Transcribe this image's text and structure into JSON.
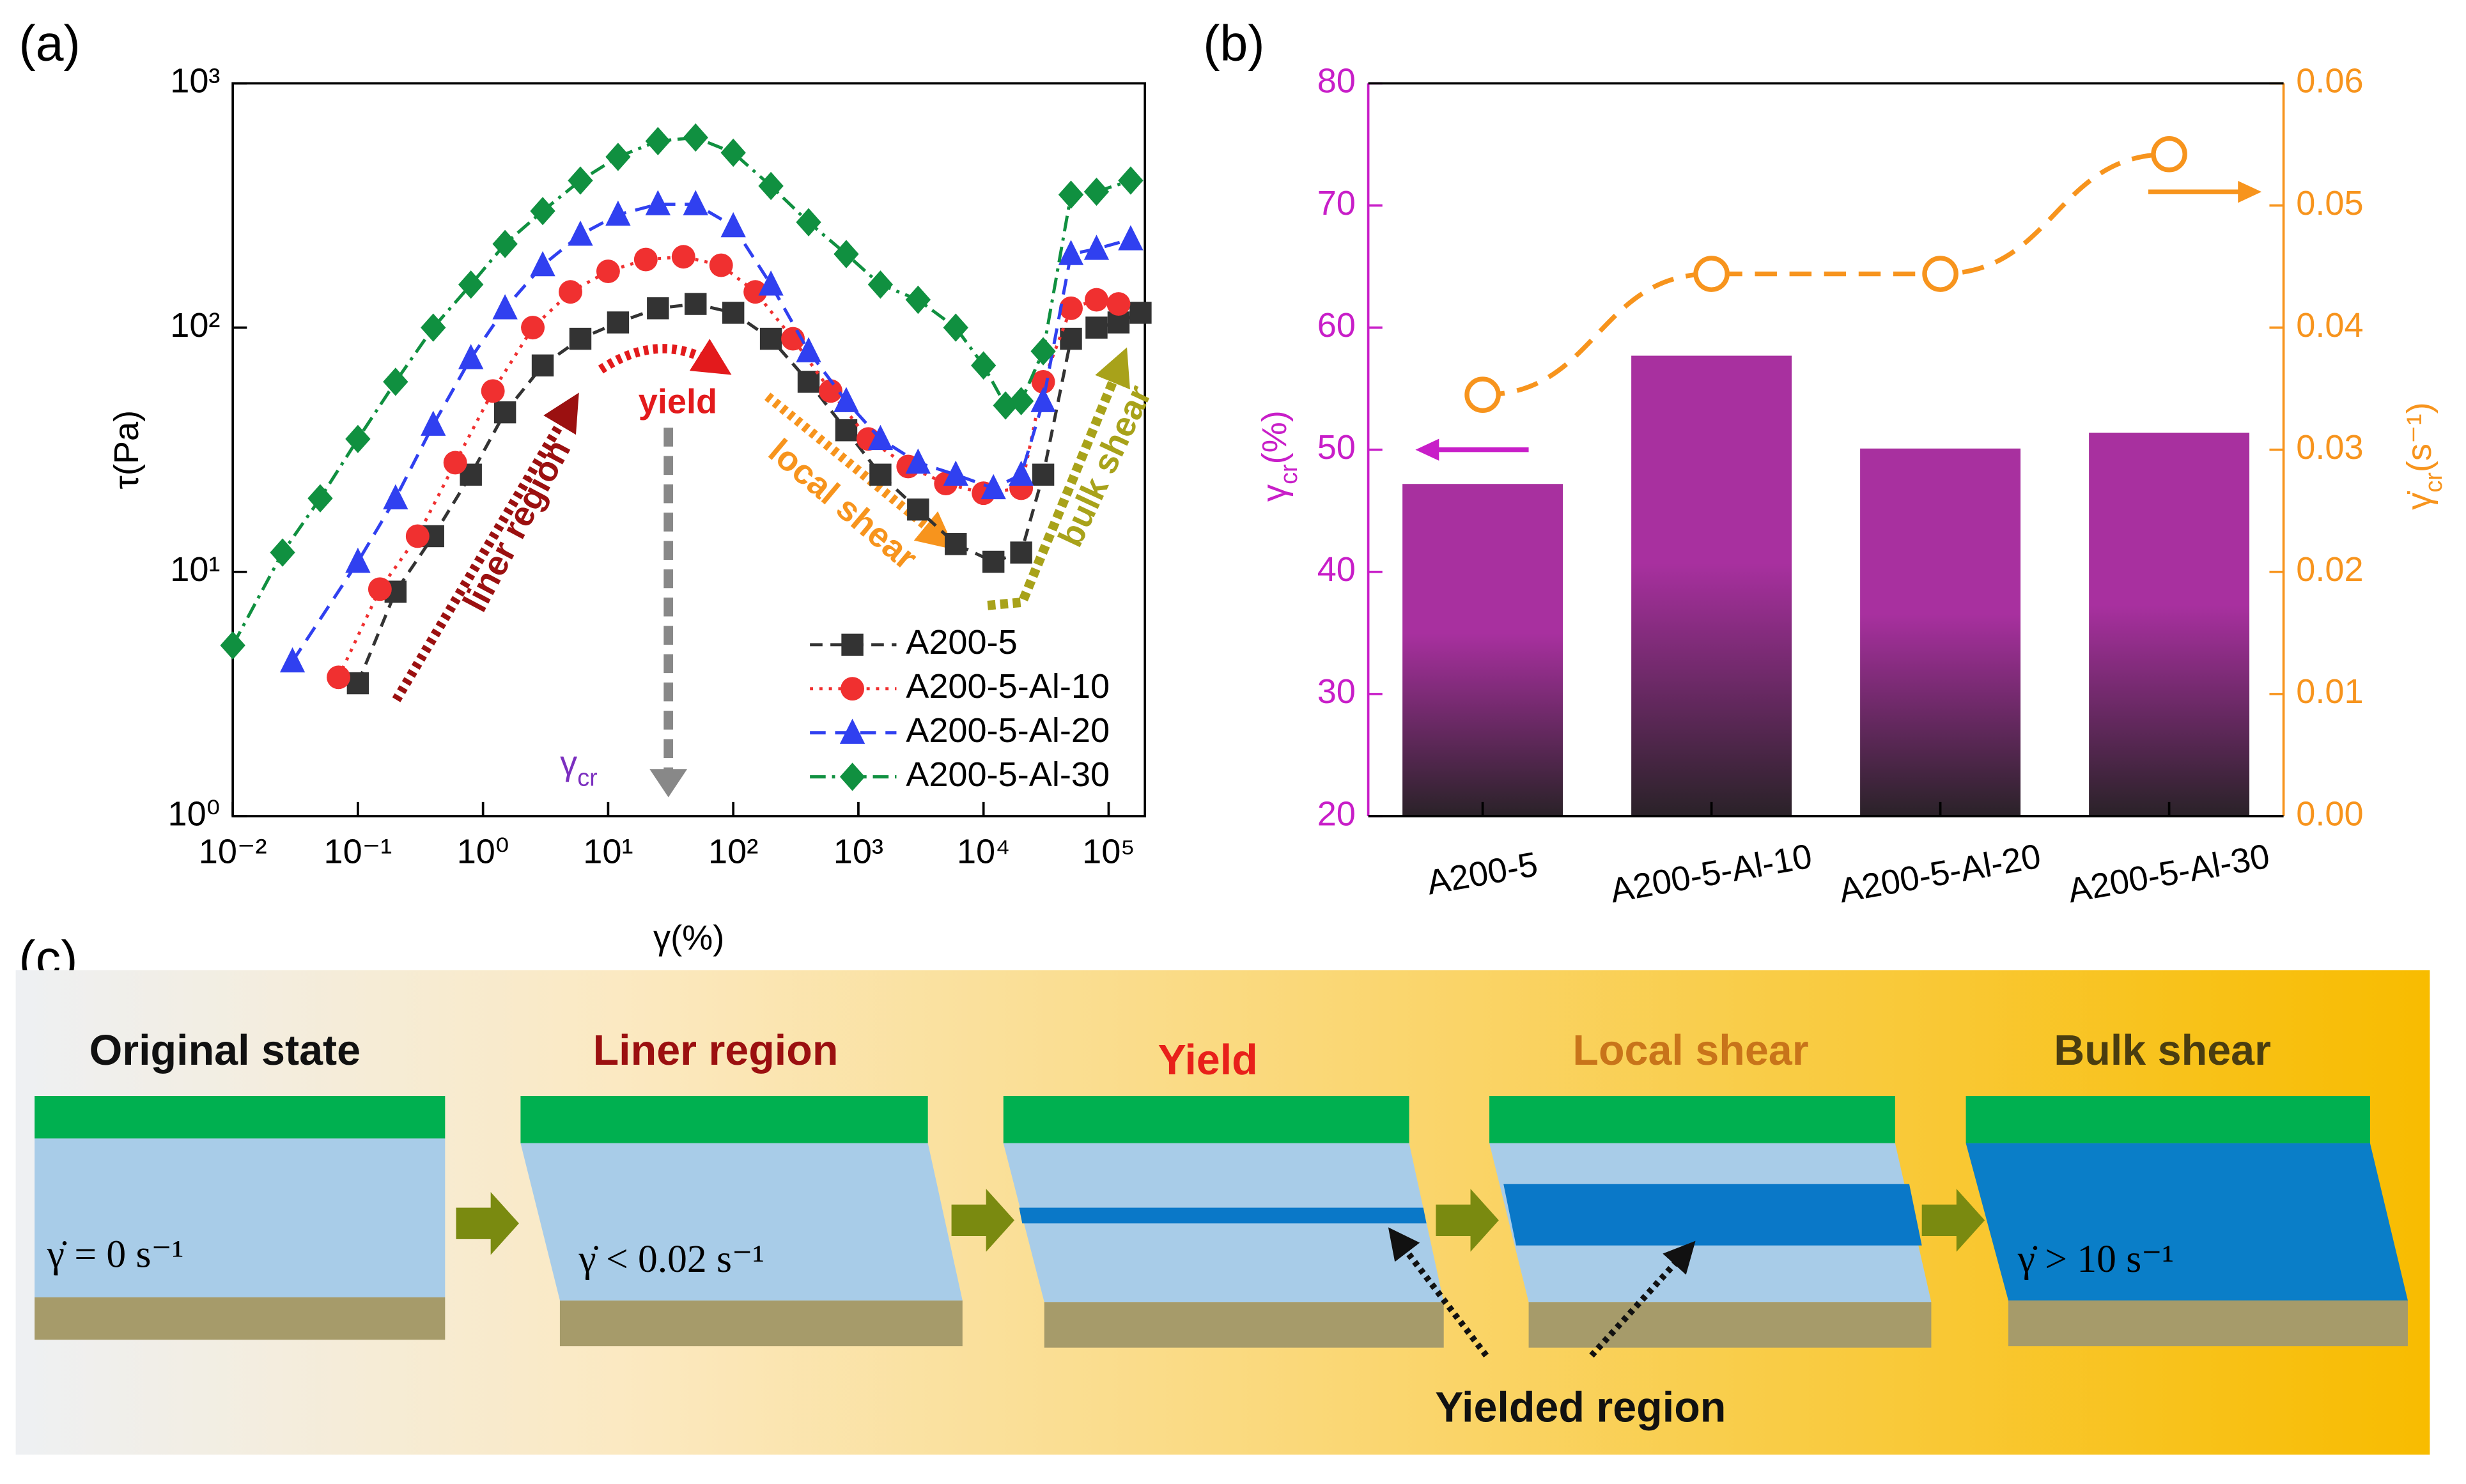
{
  "chart_data": [
    {
      "type": "line",
      "panel": "(a)",
      "xscale": "log",
      "yscale": "log",
      "xlabel": "γ(%)",
      "ylabel": "τ(Pa)",
      "xlim": [
        0.01,
        195000
      ],
      "ylim": [
        1,
        1000
      ],
      "xticks": [
        {
          "value": 0.01,
          "label": "10⁻²"
        },
        {
          "value": 0.1,
          "label": "10⁻¹"
        },
        {
          "value": 1,
          "label": "10⁰"
        },
        {
          "value": 10,
          "label": "10¹"
        },
        {
          "value": 100,
          "label": "10²"
        },
        {
          "value": 1000,
          "label": "10³"
        },
        {
          "value": 10000,
          "label": "10⁴"
        },
        {
          "value": 100000,
          "label": "10⁵"
        }
      ],
      "yticks": [
        {
          "value": 1,
          "label": "10⁰"
        },
        {
          "value": 10,
          "label": "10¹"
        },
        {
          "value": 100,
          "label": "10²"
        },
        {
          "value": 1000,
          "label": "10³"
        }
      ],
      "series": [
        {
          "name": "A200-5",
          "color": "#333333",
          "marker": "square",
          "dash": "dash",
          "x": [
            0.1,
            0.2,
            0.4,
            0.8,
            1.5,
            3,
            6,
            12,
            25,
            50,
            100,
            200,
            400,
            800,
            1500,
            3000,
            6000,
            12000,
            20000,
            30000,
            50000,
            80000,
            120000,
            180000
          ],
          "values": [
            3.5,
            8.3,
            14,
            25,
            45,
            70,
            90,
            105,
            120,
            125,
            115,
            90,
            60,
            38,
            25,
            18,
            13,
            11,
            12,
            25,
            90,
            100,
            105,
            115
          ]
        },
        {
          "name": "A200-5-Al-10",
          "color": "#f03030",
          "marker": "circle",
          "dash": "dot",
          "x": [
            0.07,
            0.15,
            0.3,
            0.6,
            1.2,
            2.5,
            5,
            10,
            20,
            40,
            80,
            150,
            300,
            600,
            1200,
            2500,
            5000,
            10000,
            20000,
            30000,
            50000,
            80000,
            120000
          ],
          "values": [
            3.7,
            8.5,
            14,
            28,
            55,
            100,
            140,
            170,
            190,
            195,
            180,
            140,
            90,
            55,
            35,
            27,
            23,
            21,
            22,
            60,
            120,
            130,
            125
          ]
        },
        {
          "name": "A200-5-Al-20",
          "color": "#3040f0",
          "marker": "triangle",
          "dash": "dashed",
          "x": [
            0.03,
            0.1,
            0.2,
            0.4,
            0.8,
            1.5,
            3,
            6,
            12,
            25,
            50,
            100,
            200,
            400,
            800,
            1500,
            3000,
            6000,
            12000,
            20000,
            30000,
            50000,
            80000,
            150000
          ],
          "values": [
            4.3,
            11,
            20,
            40,
            75,
            120,
            180,
            240,
            290,
            320,
            320,
            260,
            150,
            80,
            50,
            35,
            28,
            25,
            22,
            25,
            50,
            200,
            210,
            230
          ]
        },
        {
          "name": "A200-5-Al-30",
          "color": "#109040",
          "marker": "diamond",
          "dash": "dashdot",
          "x": [
            0.01,
            0.025,
            0.05,
            0.1,
            0.2,
            0.4,
            0.8,
            1.5,
            3,
            6,
            12,
            25,
            50,
            100,
            200,
            400,
            800,
            1500,
            3000,
            6000,
            10000,
            15000,
            20000,
            30000,
            50000,
            80000,
            150000
          ],
          "values": [
            5,
            12,
            20,
            35,
            60,
            100,
            150,
            220,
            300,
            400,
            500,
            580,
            600,
            520,
            380,
            270,
            200,
            150,
            130,
            100,
            70,
            48,
            50,
            80,
            350,
            360,
            400
          ]
        }
      ],
      "annotations": [
        {
          "text": "yield",
          "color": "#e31a1c"
        },
        {
          "text": "liner region",
          "color": "#9b1010"
        },
        {
          "text": "local shear",
          "color": "#f7941d"
        },
        {
          "text": "bulk shear",
          "color": "#a8a21a"
        },
        {
          "symbol": "γ",
          "subscript": "cr",
          "color": "#7b2fbf"
        }
      ]
    },
    {
      "type": "bar",
      "panel": "(b)",
      "categories": [
        "A200-5",
        "A200-5-Al-10",
        "A200-5-Al-20",
        "A200-5-Al-30"
      ],
      "ylabel": {
        "symbol": "γ",
        "subscript": "cr",
        "unit": "(%)"
      },
      "y2label": {
        "symbol": "γ̇",
        "subscript": "cr",
        "unit": "(s⁻¹)"
      },
      "ylim": [
        20,
        80
      ],
      "yticks": [
        20,
        30,
        40,
        50,
        60,
        70,
        80
      ],
      "y2lim": [
        0,
        0.06
      ],
      "y2ticks": [
        {
          "value": 0,
          "label": "0.00"
        },
        0.01,
        0.02,
        0.03,
        0.04,
        0.05,
        0.06
      ],
      "ycolor": "#c81ec8",
      "y2color": "#f7941d",
      "series": [
        {
          "type": "bar",
          "color": "#a8309f",
          "values": [
            47.2,
            57.7,
            50.1,
            51.4
          ]
        },
        {
          "type": "line",
          "axis": "y2",
          "color": "#f7941d",
          "values": [
            0.0345,
            0.0444,
            0.0444,
            0.0542
          ]
        }
      ]
    }
  ],
  "diagram": {
    "panel": "(c)",
    "states": [
      {
        "title": "Original state",
        "color": "#111111",
        "formula": "γ̇ = 0 s⁻¹"
      },
      {
        "title": "Liner region",
        "color": "#9b1010",
        "formula": "γ̇ < 0.02 s⁻¹"
      },
      {
        "title": "Yield",
        "color": "#e8201a"
      },
      {
        "title": "Local shear",
        "color": "#c8741a"
      },
      {
        "title": "Bulk shear",
        "color": "#4a3d10",
        "formula": "γ̇ > 10 s⁻¹"
      }
    ],
    "callout": "Yielded region"
  }
}
